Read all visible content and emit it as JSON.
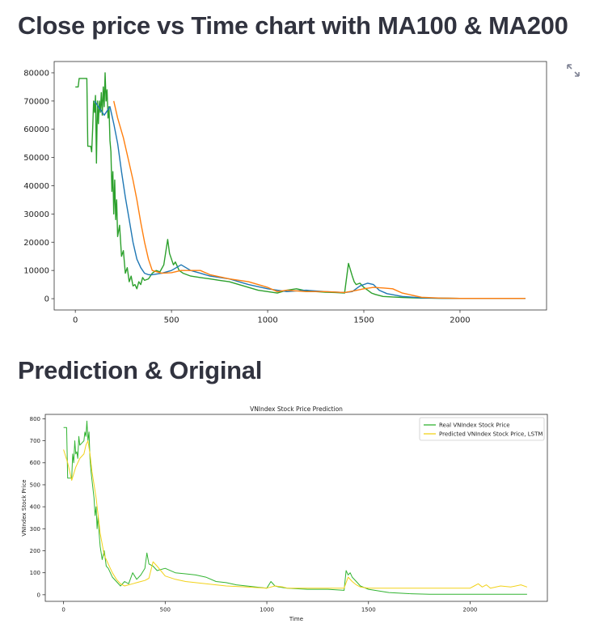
{
  "page": {
    "section1_title": "Close price vs Time chart with MA100 & MA200",
    "section2_title": "Prediction & Original",
    "fullscreen_icon": "expand-arrows-icon"
  },
  "colors": {
    "close": "#2ca02c",
    "ma100": "#1f77b4",
    "ma200": "#ff7f0e",
    "real": "#32b432",
    "predicted": "#f2d21a"
  },
  "chart_data": [
    {
      "type": "line",
      "title": "",
      "xlabel": "",
      "ylabel": "",
      "xlim": [
        -110,
        2450
      ],
      "ylim": [
        -4000,
        84000
      ],
      "xticks": [
        0,
        500,
        1000,
        1500,
        2000
      ],
      "yticks": [
        0,
        10000,
        20000,
        30000,
        40000,
        50000,
        60000,
        70000,
        80000
      ],
      "grid": false,
      "series": [
        {
          "key": "close",
          "x": [
            0,
            15,
            20,
            60,
            65,
            80,
            85,
            90,
            95,
            100,
            105,
            110,
            115,
            120,
            125,
            130,
            135,
            140,
            145,
            150,
            155,
            160,
            165,
            170,
            175,
            180,
            185,
            190,
            195,
            200,
            205,
            210,
            215,
            220,
            230,
            240,
            250,
            260,
            270,
            280,
            290,
            300,
            310,
            320,
            330,
            340,
            350,
            360,
            380,
            400,
            420,
            440,
            460,
            480,
            490,
            500,
            510,
            520,
            540,
            560,
            600,
            650,
            700,
            750,
            800,
            850,
            900,
            950,
            1000,
            1050,
            1100,
            1150,
            1200,
            1250,
            1300,
            1350,
            1400,
            1420,
            1440,
            1450,
            1460,
            1480,
            1500,
            1520,
            1540,
            1560,
            1600,
            1700,
            1800,
            1900,
            2000,
            2100,
            2200,
            2340
          ],
          "y": [
            75000,
            75000,
            78000,
            78000,
            54000,
            54000,
            52000,
            60000,
            70000,
            66000,
            72000,
            48000,
            70000,
            62000,
            70000,
            66000,
            73000,
            65000,
            75000,
            68000,
            80000,
            70000,
            74000,
            64000,
            68000,
            56000,
            52000,
            38000,
            45000,
            30000,
            42000,
            28000,
            35000,
            22000,
            26000,
            15000,
            17000,
            9000,
            11000,
            6000,
            8000,
            4500,
            5000,
            3500,
            6000,
            5000,
            7500,
            6500,
            7000,
            9000,
            10000,
            9500,
            12000,
            21000,
            16000,
            14000,
            12000,
            13000,
            10000,
            9000,
            8000,
            7500,
            7000,
            6500,
            6000,
            5000,
            4000,
            3000,
            2500,
            2000,
            3000,
            3500,
            2800,
            2500,
            2300,
            2200,
            2000,
            12500,
            8000,
            6000,
            5000,
            5500,
            4000,
            3000,
            2000,
            1500,
            800,
            400,
            200,
            150,
            100,
            100,
            100,
            100
          ]
        },
        {
          "key": "ma100",
          "x": [
            100,
            120,
            150,
            180,
            200,
            220,
            240,
            260,
            280,
            300,
            320,
            340,
            360,
            380,
            400,
            450,
            500,
            550,
            600,
            650,
            700,
            800,
            900,
            1000,
            1100,
            1200,
            1300,
            1400,
            1440,
            1480,
            1520,
            1550,
            1580,
            1620,
            1700,
            1800,
            1900,
            2000,
            2340
          ],
          "y": [
            70000,
            68000,
            65000,
            68000,
            62000,
            55000,
            45000,
            36000,
            28000,
            20000,
            14000,
            11000,
            9000,
            8500,
            8500,
            9000,
            10000,
            12000,
            10000,
            9000,
            8000,
            7000,
            5000,
            3500,
            2500,
            3000,
            2500,
            2200,
            2500,
            4500,
            5500,
            5000,
            3000,
            1800,
            800,
            300,
            150,
            100,
            100
          ]
        },
        {
          "key": "ma200",
          "x": [
            200,
            220,
            250,
            280,
            300,
            320,
            340,
            360,
            380,
            400,
            450,
            500,
            550,
            600,
            650,
            700,
            800,
            900,
            1000,
            1050,
            1100,
            1200,
            1300,
            1400,
            1450,
            1500,
            1550,
            1600,
            1650,
            1700,
            1800,
            1900,
            2000,
            2340
          ],
          "y": [
            70000,
            64000,
            57000,
            48000,
            42000,
            35000,
            27000,
            20000,
            14000,
            10000,
            9000,
            9200,
            10000,
            10000,
            10000,
            8500,
            7000,
            6000,
            4000,
            2500,
            3000,
            2500,
            2500,
            2200,
            2800,
            3500,
            4000,
            3800,
            3500,
            2000,
            500,
            200,
            100,
            100
          ]
        }
      ]
    },
    {
      "type": "line",
      "title": "VNIndex Stock Price Prediction",
      "xlabel": "Time",
      "ylabel": "VNIndex Stock Price",
      "xlim": [
        -90,
        2380
      ],
      "ylim": [
        -30,
        820
      ],
      "xticks": [
        0,
        500,
        1000,
        1500,
        2000
      ],
      "yticks": [
        0,
        100,
        200,
        300,
        400,
        500,
        600,
        700,
        800
      ],
      "grid": false,
      "legend_position": "top-right",
      "series": [
        {
          "key": "real",
          "name": "Real VNIndex Stock Price",
          "x": [
            0,
            15,
            20,
            40,
            45,
            50,
            55,
            60,
            65,
            70,
            75,
            80,
            90,
            100,
            105,
            110,
            115,
            120,
            125,
            130,
            135,
            140,
            150,
            155,
            160,
            165,
            170,
            175,
            180,
            190,
            200,
            210,
            220,
            240,
            260,
            280,
            300,
            320,
            340,
            360,
            380,
            400,
            410,
            420,
            440,
            460,
            500,
            550,
            600,
            650,
            700,
            750,
            800,
            850,
            900,
            1000,
            1020,
            1040,
            1060,
            1100,
            1200,
            1300,
            1380,
            1390,
            1400,
            1410,
            1420,
            1440,
            1460,
            1500,
            1600,
            1700,
            1800,
            2000,
            2280
          ],
          "y": [
            760,
            760,
            530,
            530,
            640,
            600,
            700,
            640,
            650,
            620,
            720,
            680,
            690,
            700,
            740,
            720,
            790,
            700,
            740,
            620,
            560,
            520,
            440,
            360,
            400,
            300,
            360,
            280,
            220,
            160,
            200,
            130,
            120,
            80,
            60,
            40,
            60,
            50,
            100,
            70,
            90,
            120,
            190,
            140,
            130,
            110,
            120,
            100,
            95,
            90,
            80,
            60,
            55,
            45,
            40,
            30,
            60,
            40,
            35,
            30,
            25,
            25,
            20,
            110,
            90,
            100,
            80,
            60,
            40,
            25,
            10,
            5,
            2,
            2,
            2
          ]
        },
        {
          "key": "predicted",
          "name": "Predicted VNIndex Stock Price, LSTM",
          "x": [
            0,
            20,
            40,
            60,
            80,
            100,
            110,
            120,
            130,
            140,
            160,
            180,
            200,
            220,
            240,
            260,
            280,
            300,
            320,
            340,
            360,
            380,
            400,
            420,
            440,
            460,
            500,
            550,
            600,
            700,
            800,
            900,
            1000,
            1040,
            1080,
            1100,
            1200,
            1300,
            1380,
            1400,
            1420,
            1440,
            1460,
            1500,
            1600,
            1700,
            1800,
            1900,
            2000,
            2020,
            2040,
            2060,
            2080,
            2100,
            2150,
            2200,
            2250,
            2280
          ],
          "y": [
            660,
            600,
            520,
            580,
            620,
            640,
            680,
            700,
            640,
            560,
            440,
            280,
            180,
            140,
            100,
            70,
            50,
            40,
            45,
            50,
            55,
            60,
            65,
            75,
            150,
            130,
            85,
            70,
            60,
            50,
            40,
            35,
            30,
            40,
            35,
            30,
            30,
            30,
            30,
            80,
            60,
            45,
            35,
            30,
            30,
            30,
            30,
            30,
            30,
            40,
            50,
            35,
            45,
            30,
            40,
            35,
            45,
            35
          ]
        }
      ]
    }
  ]
}
